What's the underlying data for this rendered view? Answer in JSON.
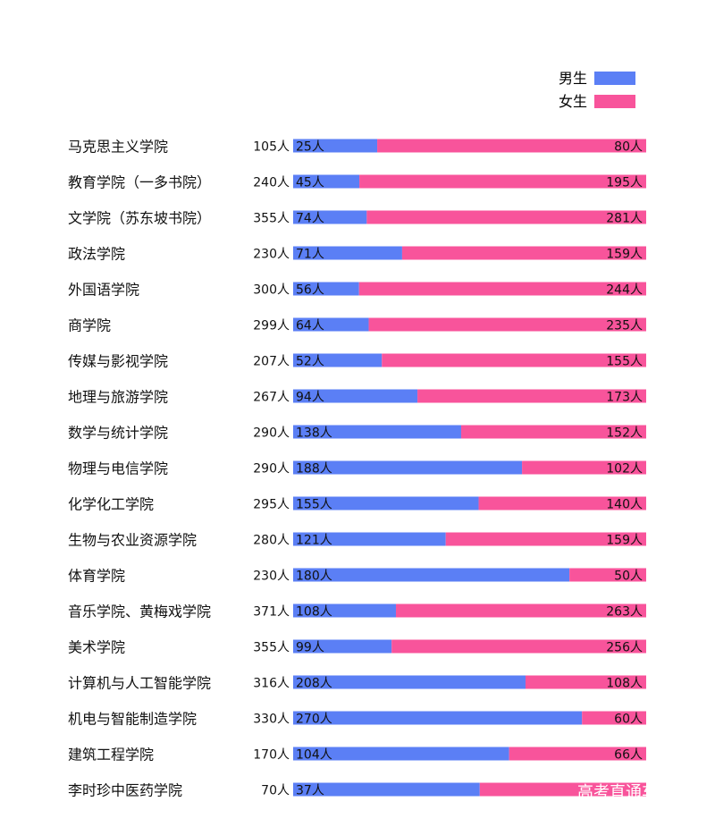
{
  "colors": {
    "male": "#5b7ff5",
    "female": "#f8549b",
    "text": "#111111",
    "watermark": "#ffffff"
  },
  "legend": {
    "male": "男生",
    "female": "女生"
  },
  "watermark": "高考直通车APP",
  "chart_data": {
    "type": "bar",
    "orientation": "horizontal",
    "stacked": "100%",
    "legend_position": "top-right",
    "grid": false,
    "categories": [
      "马克思主义学院",
      "教育学院（一多书院）",
      "文学院（苏东坡书院）",
      "政法学院",
      "外国语学院",
      "商学院",
      "传媒与影视学院",
      "地理与旅游学院",
      "数学与统计学院",
      "物理与电信学院",
      "化学化工学院",
      "生物与农业资源学院",
      "体育学院",
      "音乐学院、黄梅戏学院",
      "美术学院",
      "计算机与人工智能学院",
      "机电与智能制造学院",
      "建筑工程学院",
      "李时珍中医药学院"
    ],
    "totals": [
      "105人",
      "240人",
      "355人",
      "230人",
      "300人",
      "299人",
      "207人",
      "267人",
      "290人",
      "290人",
      "295人",
      "280人",
      "230人",
      "371人",
      "355人",
      "316人",
      "330人",
      "170人",
      "70人"
    ],
    "series": [
      {
        "name": "男生",
        "values": [
          25,
          45,
          74,
          71,
          56,
          64,
          52,
          94,
          138,
          188,
          155,
          121,
          180,
          108,
          99,
          208,
          270,
          104,
          37
        ],
        "labels": [
          "25人",
          "45人",
          "74人",
          "71人",
          "56人",
          "64人",
          "52人",
          "94人",
          "138人",
          "188人",
          "155人",
          "121人",
          "180人",
          "108人",
          "99人",
          "208人",
          "270人",
          "104人",
          "37人"
        ]
      },
      {
        "name": "女生",
        "values": [
          80,
          195,
          281,
          159,
          244,
          235,
          155,
          173,
          152,
          102,
          140,
          159,
          50,
          263,
          256,
          108,
          60,
          66,
          33
        ],
        "labels": [
          "80人",
          "195人",
          "281人",
          "159人",
          "244人",
          "235人",
          "155人",
          "173人",
          "152人",
          "102人",
          "140人",
          "159人",
          "50人",
          "263人",
          "256人",
          "108人",
          "60人",
          "66人",
          ""
        ]
      }
    ]
  }
}
